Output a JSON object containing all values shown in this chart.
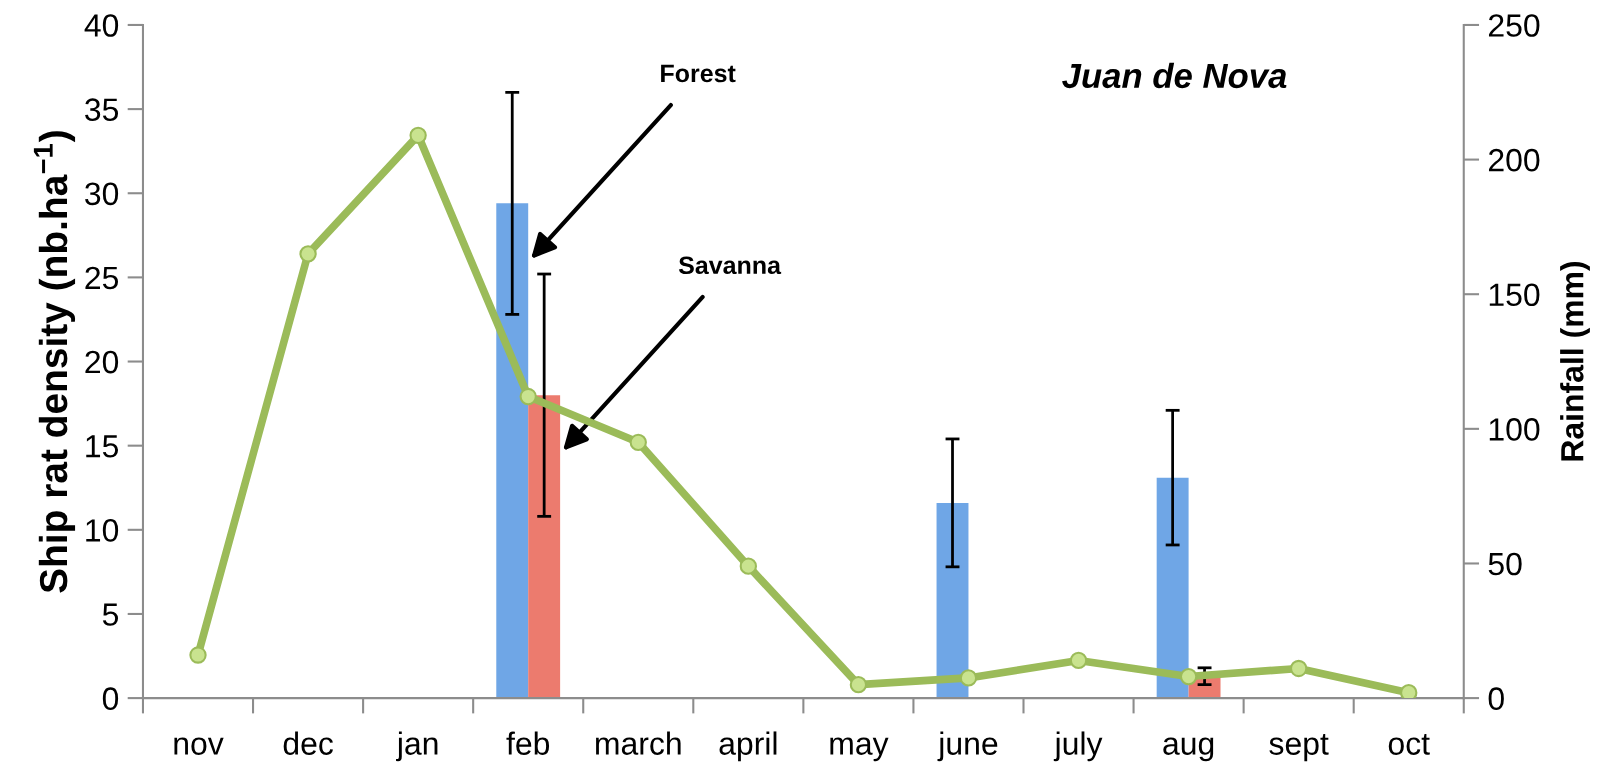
{
  "chart_data": {
    "type": "bar",
    "title": "Juan de Nova",
    "ylabel": "Ship rat density (nb.ha$^{−1}$)",
    "y2label": "Rainfall (mm)",
    "categories": [
      "nov",
      "dec",
      "jan",
      "feb",
      "march",
      "april",
      "may",
      "june",
      "july",
      "aug",
      "sept",
      "oct"
    ],
    "series": [
      {
        "name": "Forest",
        "color": "#6fa6e6",
        "values": [
          null,
          null,
          null,
          29.4,
          null,
          null,
          null,
          11.6,
          null,
          13.1,
          null,
          null
        ],
        "errors": [
          null,
          null,
          null,
          6.6,
          null,
          null,
          null,
          3.8,
          null,
          4.0,
          null,
          null
        ]
      },
      {
        "name": "Savanna",
        "color": "#ec7b6e",
        "values": [
          null,
          null,
          null,
          18.0,
          null,
          null,
          null,
          null,
          null,
          1.3,
          null,
          null
        ],
        "errors": [
          null,
          null,
          null,
          7.2,
          null,
          null,
          null,
          null,
          null,
          0.5,
          null,
          null
        ]
      },
      {
        "type": "line",
        "axis": "y2",
        "color": "#9bbb59",
        "marker": "circle",
        "values": [
          16,
          165,
          209,
          112,
          95,
          49,
          5,
          7.5,
          14,
          8,
          11,
          2
        ]
      }
    ],
    "ylim": [
      0,
      40
    ],
    "yticks": [
      0,
      5,
      10,
      15,
      20,
      25,
      30,
      35,
      40
    ],
    "y2lim": [
      0,
      250
    ],
    "y2ticks": [
      0,
      50,
      100,
      150,
      200,
      250
    ],
    "grid": false,
    "legend": false
  }
}
